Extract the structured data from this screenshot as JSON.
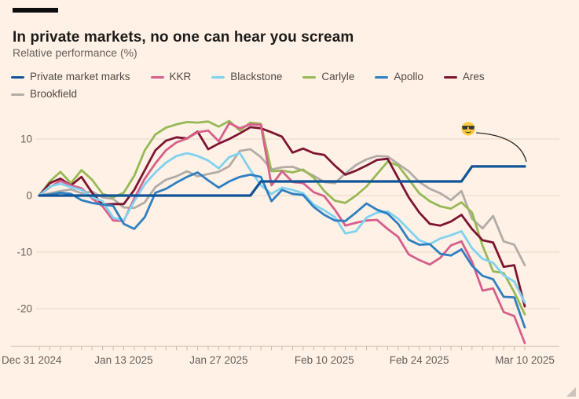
{
  "header": {
    "title": "In private markets, no one can hear you scream",
    "subtitle": "Relative performance (%)"
  },
  "chart_data": {
    "type": "line",
    "title": "In private markets, no one can hear you scream",
    "ylabel": "Relative performance (%)",
    "x_axis": {
      "tick_labels": [
        "Dec 31 2024",
        "Jan 13 2025",
        "Jan 27 2025",
        "Feb 10 2025",
        "Feb 24 2025",
        "Mar 10 2025"
      ],
      "tick_indices": [
        0,
        8,
        17,
        27,
        36,
        46
      ],
      "n_points": 47,
      "minor_tick_every_point": true
    },
    "y_axis": {
      "ticks": [
        10,
        0,
        -10,
        -20
      ],
      "ylim": [
        -27.5,
        14.5
      ],
      "grid": true
    },
    "legend_position": "top",
    "legend_rows": [
      [
        0,
        1,
        2,
        3,
        4
      ],
      [
        5,
        6
      ]
    ],
    "series": [
      {
        "name": "Private market marks",
        "color": "#0f5499",
        "width": 3.2,
        "values": [
          0,
          0,
          0,
          0,
          0,
          0,
          0,
          0,
          0,
          0,
          0,
          0,
          0,
          0,
          0,
          0,
          0,
          0,
          0,
          0,
          0,
          2.5,
          2.5,
          2.5,
          2.5,
          2.5,
          2.5,
          2.5,
          2.5,
          2.5,
          2.5,
          2.5,
          2.5,
          2.5,
          2.5,
          2.5,
          2.5,
          2.5,
          2.5,
          2.5,
          2.5,
          5.15,
          5.15,
          5.15,
          5.15,
          5.15,
          5.15
        ]
      },
      {
        "name": "KKR",
        "color": "#d6608d",
        "width": 2.8,
        "values": [
          0,
          1.5,
          2.6,
          1.8,
          1.3,
          -0.5,
          -1.9,
          -4.4,
          -4.5,
          -0.5,
          3.0,
          5.7,
          8.0,
          9.4,
          10.1,
          11.2,
          11.5,
          9.6,
          12.8,
          11.9,
          12.6,
          12.5,
          1.8,
          4.3,
          2.4,
          2.2,
          0.6,
          -0.1,
          -2.5,
          -5.3,
          -4.8,
          -4.4,
          -4.3,
          -5.9,
          -7.3,
          -10.4,
          -11.4,
          -12.2,
          -11.0,
          -8.8,
          -8.1,
          -11.7,
          -16.8,
          -16.4,
          -20.6,
          -21.3,
          -26.1
        ]
      },
      {
        "name": "Blackstone",
        "color": "#7fd3f0",
        "width": 2.8,
        "values": [
          0,
          1.6,
          2.1,
          1.5,
          1.0,
          -0.3,
          -1.0,
          -3.9,
          -4.4,
          -1.0,
          2.0,
          4.1,
          5.8,
          7.0,
          7.5,
          7.0,
          6.2,
          4.8,
          6.8,
          7.5,
          4.5,
          1.8,
          0.3,
          1.4,
          1.0,
          0.4,
          -1.6,
          -2.6,
          -3.8,
          -6.7,
          -6.3,
          -3.9,
          -3.0,
          -2.8,
          -4.1,
          -6.0,
          -7.9,
          -8.6,
          -7.6,
          -7.0,
          -6.3,
          -9.3,
          -11.2,
          -11.9,
          -14.1,
          -15.2,
          -18.9
        ]
      },
      {
        "name": "Carlyle",
        "color": "#96b956",
        "width": 2.8,
        "values": [
          0,
          2.5,
          4.2,
          2.2,
          4.5,
          2.8,
          0.3,
          -0.3,
          0.5,
          3.5,
          8.0,
          10.8,
          12.0,
          12.6,
          13.0,
          12.9,
          13.1,
          12.2,
          13.2,
          11.5,
          12.9,
          12.7,
          4.3,
          4.4,
          4.1,
          4.6,
          3.2,
          0.8,
          -0.9,
          -1.3,
          0.0,
          1.6,
          3.8,
          6.0,
          5.3,
          2.9,
          0.4,
          -1.0,
          -1.9,
          -2.3,
          -1.2,
          -3.0,
          -8.9,
          -13.4,
          -13.7,
          -17.1,
          -21.0
        ]
      },
      {
        "name": "Apollo",
        "color": "#2f7fc1",
        "width": 2.8,
        "values": [
          0,
          0.2,
          0.5,
          0.3,
          -0.8,
          -1.3,
          -1.6,
          -1.8,
          -5.0,
          -5.9,
          -3.8,
          0.5,
          1.2,
          2.3,
          3.3,
          4.1,
          2.7,
          1.4,
          2.5,
          3.3,
          3.7,
          3.3,
          -1.0,
          1.0,
          0.3,
          0.1,
          -2.0,
          -3.4,
          -4.4,
          -4.5,
          -3.0,
          -1.4,
          -2.5,
          -3.2,
          -5.0,
          -7.8,
          -8.7,
          -8.6,
          -10.3,
          -10.6,
          -9.5,
          -12.4,
          -14.2,
          -14.8,
          -17.9,
          -18.0,
          -23.3
        ]
      },
      {
        "name": "Ares",
        "color": "#7d1533",
        "width": 2.8,
        "values": [
          0,
          2.2,
          3.0,
          1.8,
          3.3,
          0.5,
          -1.6,
          -1.5,
          -1.5,
          1.0,
          4.5,
          8.0,
          9.7,
          10.3,
          10.1,
          11.3,
          8.2,
          9.2,
          10.0,
          11.0,
          12.1,
          11.9,
          11.2,
          10.4,
          7.6,
          8.3,
          7.5,
          7.2,
          5.3,
          3.7,
          4.4,
          5.3,
          6.3,
          6.5,
          3.1,
          -0.3,
          -3.0,
          -5.0,
          -5.3,
          -4.6,
          -3.4,
          -5.9,
          -7.9,
          -8.3,
          -12.6,
          -12.3,
          -19.6
        ]
      },
      {
        "name": "Brookfield",
        "color": "#b1aca7",
        "width": 2.8,
        "values": [
          0,
          0.4,
          0.8,
          1.1,
          0.4,
          0.7,
          -0.3,
          -0.6,
          -2.1,
          -2.2,
          -1.2,
          1.5,
          2.8,
          3.4,
          4.3,
          3.4,
          3.8,
          4.2,
          5.2,
          7.9,
          8.2,
          6.8,
          4.6,
          5.0,
          5.1,
          4.4,
          3.5,
          2.4,
          2.2,
          3.9,
          5.4,
          6.4,
          7.0,
          6.9,
          5.6,
          4.3,
          2.4,
          1.2,
          0.4,
          -0.8,
          0.8,
          -4.1,
          -5.8,
          -3.6,
          -8.1,
          -8.7,
          -12.3
        ]
      }
    ],
    "annotation": {
      "emoji": "😎",
      "points_to_series": "Private market marks"
    }
  },
  "colors": {
    "background": "#fff1e5",
    "title_text": "#1c1b1a",
    "muted_text": "#66605c",
    "legend_text": "#4f4a47",
    "gridline": "#e9d7c7",
    "axis_line": "#cbb9a9"
  }
}
